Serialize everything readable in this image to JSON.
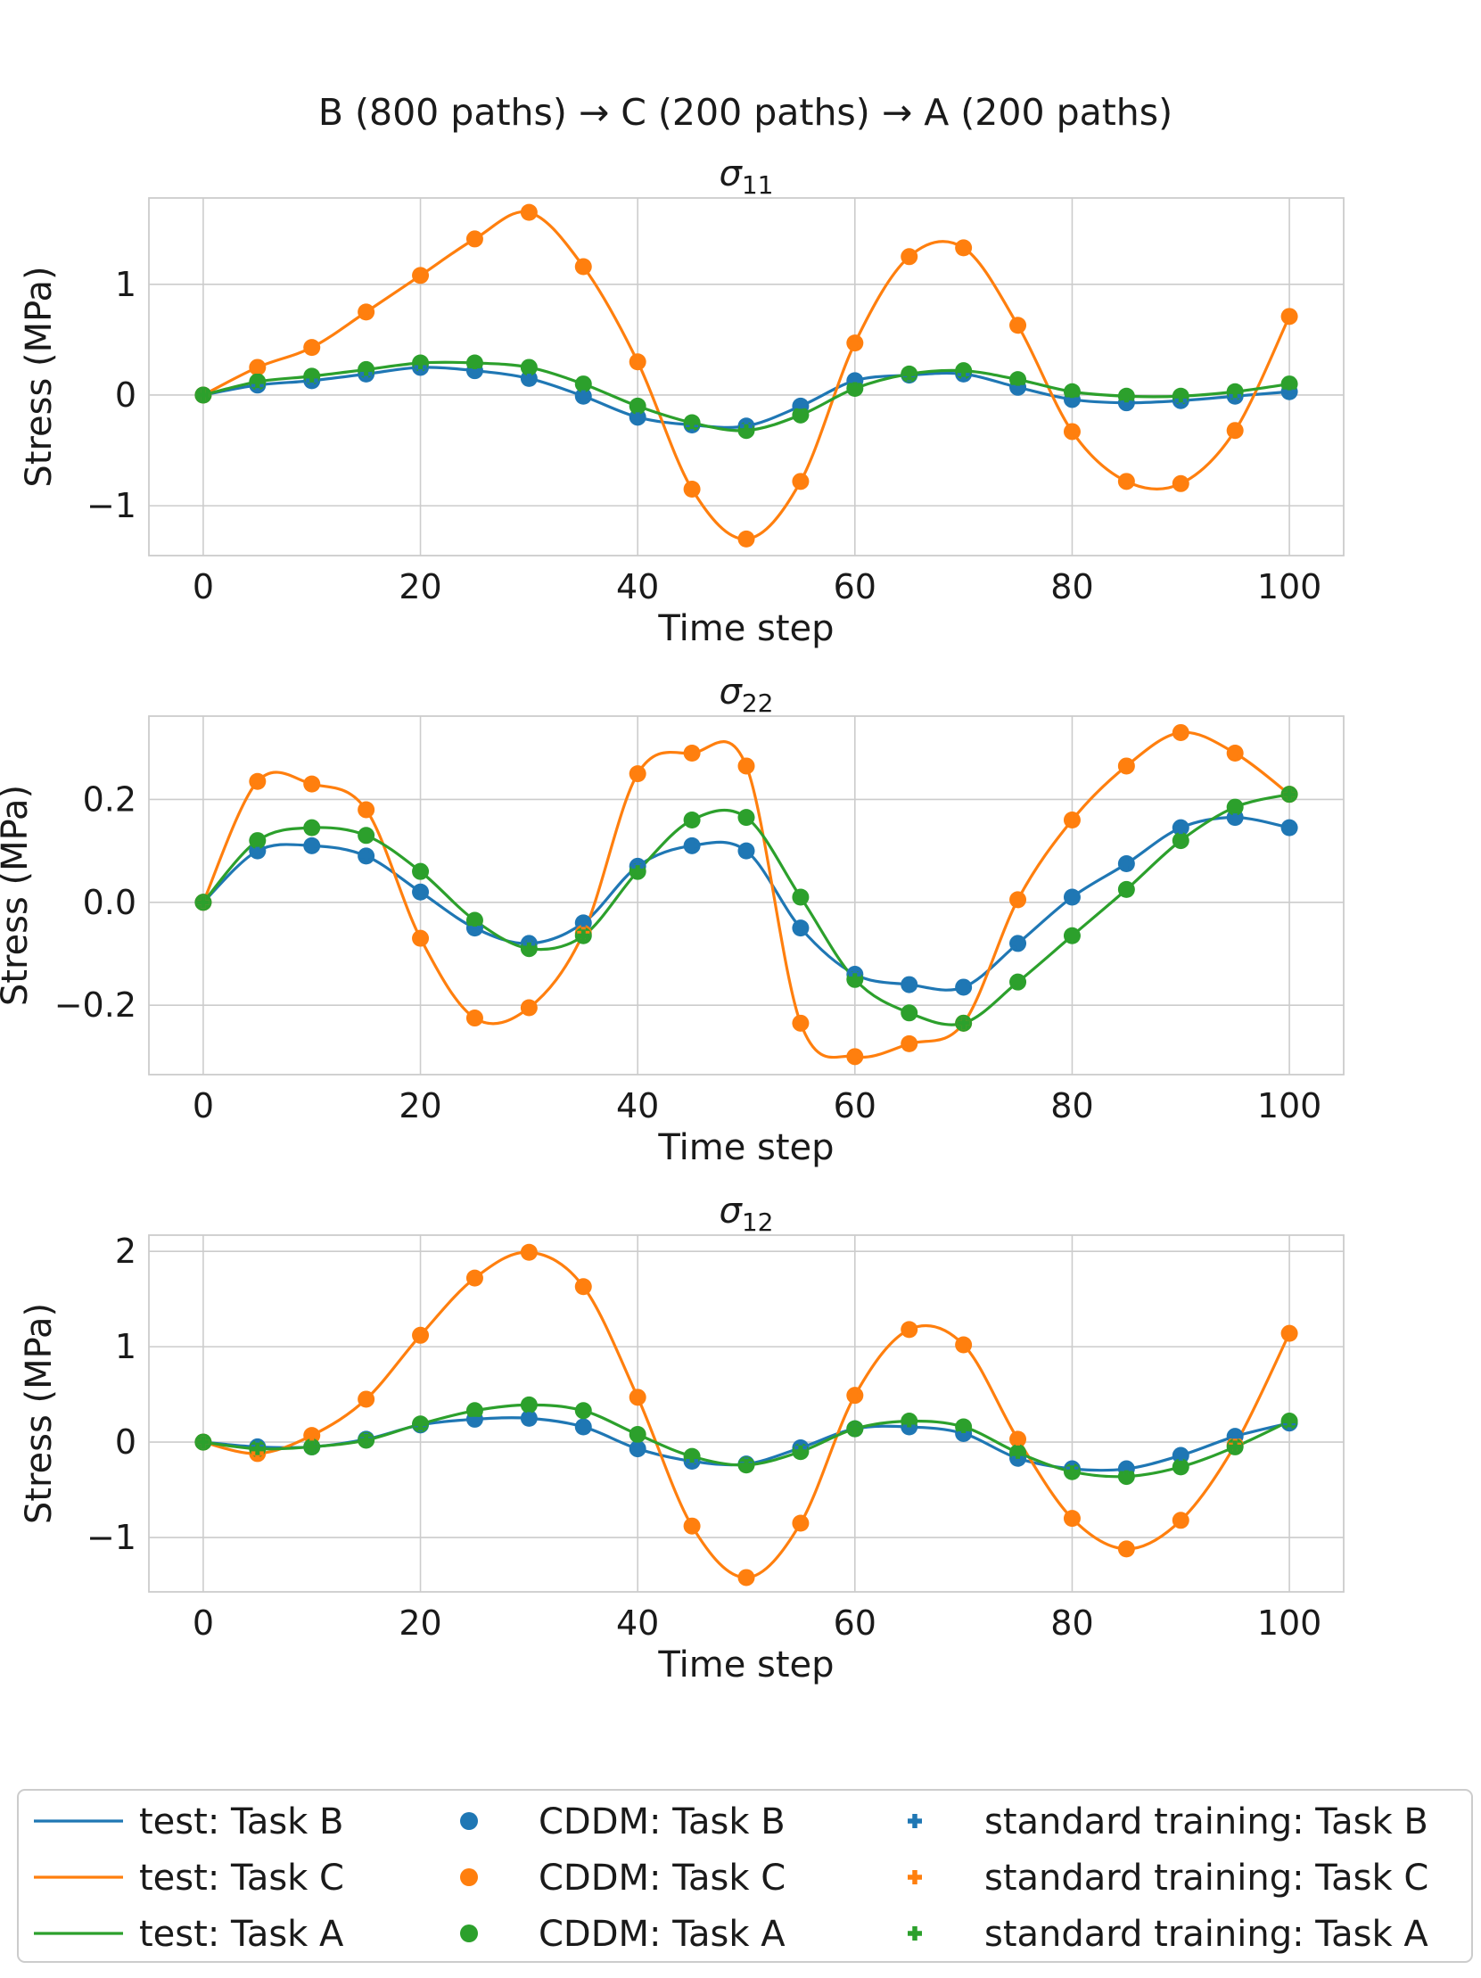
{
  "figure_title": "B (800 paths) → C (200 paths) → A (200 paths)",
  "colors": {
    "task_b": "#1f77b4",
    "task_c": "#ff7f0e",
    "task_a": "#2ca02c",
    "grid": "#cccccc",
    "frame": "#cccccc"
  },
  "legend": {
    "entries": [
      {
        "label": "test: Task B",
        "marker": "line",
        "series": "test_b"
      },
      {
        "label": "test: Task C",
        "marker": "line",
        "series": "test_c"
      },
      {
        "label": "test: Task A",
        "marker": "line",
        "series": "test_a"
      },
      {
        "label": "CDDM: Task B",
        "marker": "circle",
        "series": "cddm_b"
      },
      {
        "label": "CDDM: Task C",
        "marker": "circle",
        "series": "cddm_c"
      },
      {
        "label": "CDDM: Task A",
        "marker": "circle",
        "series": "cddm_a"
      },
      {
        "label": "standard training: Task B",
        "marker": "plus",
        "series": "std_b"
      },
      {
        "label": "standard training: Task C",
        "marker": "plus",
        "series": "std_c"
      },
      {
        "label": "standard training: Task A",
        "marker": "plus",
        "series": "std_a"
      }
    ]
  },
  "chart_data": [
    {
      "type": "line",
      "title_base": "σ",
      "title_sub": "11",
      "xlabel": "Time step",
      "ylabel": "Stress (MPa)",
      "xlim": [
        -5,
        105
      ],
      "ylim": [
        -1.45,
        1.78
      ],
      "xticks": [
        0,
        20,
        40,
        60,
        80,
        100
      ],
      "yticks": [
        -1,
        0,
        1
      ],
      "ytick_labels": [
        "−1",
        "0",
        "1"
      ],
      "grid": true,
      "x": [
        0,
        5,
        10,
        15,
        20,
        25,
        30,
        35,
        40,
        45,
        50,
        55,
        60,
        65,
        70,
        75,
        80,
        85,
        90,
        95,
        100
      ],
      "series": [
        {
          "name": "Task B",
          "key": "b",
          "values": [
            0,
            0.09,
            0.13,
            0.19,
            0.25,
            0.22,
            0.15,
            -0.01,
            -0.2,
            -0.27,
            -0.28,
            -0.1,
            0.13,
            0.18,
            0.19,
            0.07,
            -0.04,
            -0.07,
            -0.05,
            -0.01,
            0.03
          ]
        },
        {
          "name": "Task C",
          "key": "c",
          "values": [
            0,
            0.25,
            0.43,
            0.75,
            1.08,
            1.41,
            1.65,
            1.16,
            0.3,
            -0.85,
            -1.3,
            -0.78,
            0.47,
            1.25,
            1.33,
            0.63,
            -0.33,
            -0.78,
            -0.8,
            -0.32,
            0.71
          ]
        },
        {
          "name": "Task A",
          "key": "a",
          "values": [
            0,
            0.12,
            0.17,
            0.23,
            0.29,
            0.29,
            0.25,
            0.1,
            -0.1,
            -0.25,
            -0.32,
            -0.18,
            0.06,
            0.19,
            0.22,
            0.14,
            0.03,
            -0.01,
            -0.01,
            0.03,
            0.1
          ]
        }
      ]
    },
    {
      "type": "line",
      "title_base": "σ",
      "title_sub": "22",
      "xlabel": "Time step",
      "ylabel": "Stress (MPa)",
      "xlim": [
        -5,
        105
      ],
      "ylim": [
        -0.335,
        0.362
      ],
      "xticks": [
        0,
        20,
        40,
        60,
        80,
        100
      ],
      "yticks": [
        -0.2,
        0.0,
        0.2
      ],
      "ytick_labels": [
        "−0.2",
        "0.0",
        "0.2"
      ],
      "grid": true,
      "x": [
        0,
        5,
        10,
        15,
        20,
        25,
        30,
        35,
        40,
        45,
        50,
        55,
        60,
        65,
        70,
        75,
        80,
        85,
        90,
        95,
        100
      ],
      "series": [
        {
          "name": "Task B",
          "key": "b",
          "values": [
            0,
            0.1,
            0.11,
            0.09,
            0.02,
            -0.05,
            -0.08,
            -0.04,
            0.07,
            0.11,
            0.1,
            -0.05,
            -0.14,
            -0.16,
            -0.165,
            -0.08,
            0.01,
            0.075,
            0.145,
            0.165,
            0.145
          ]
        },
        {
          "name": "Task C",
          "key": "c",
          "values": [
            0,
            0.235,
            0.23,
            0.18,
            -0.07,
            -0.225,
            -0.205,
            -0.06,
            0.25,
            0.29,
            0.265,
            -0.235,
            -0.3,
            -0.275,
            -0.235,
            0.005,
            0.16,
            0.265,
            0.33,
            0.29,
            0.21
          ]
        },
        {
          "name": "Task A",
          "key": "a",
          "values": [
            0,
            0.12,
            0.145,
            0.13,
            0.06,
            -0.035,
            -0.09,
            -0.065,
            0.06,
            0.16,
            0.165,
            0.01,
            -0.15,
            -0.215,
            -0.235,
            -0.155,
            -0.065,
            0.025,
            0.12,
            0.185,
            0.21
          ]
        }
      ]
    },
    {
      "type": "line",
      "title_base": "σ",
      "title_sub": "12",
      "xlabel": "Time step",
      "ylabel": "Stress (MPa)",
      "xlim": [
        -5,
        105
      ],
      "ylim": [
        -1.57,
        2.17
      ],
      "xticks": [
        0,
        20,
        40,
        60,
        80,
        100
      ],
      "yticks": [
        -1,
        0,
        1,
        2
      ],
      "ytick_labels": [
        "−1",
        "0",
        "1",
        "2"
      ],
      "grid": true,
      "x": [
        0,
        5,
        10,
        15,
        20,
        25,
        30,
        35,
        40,
        45,
        50,
        55,
        60,
        65,
        70,
        75,
        80,
        85,
        90,
        95,
        100
      ],
      "series": [
        {
          "name": "Task B",
          "key": "b",
          "values": [
            0,
            -0.05,
            -0.05,
            0.03,
            0.18,
            0.24,
            0.25,
            0.16,
            -0.07,
            -0.2,
            -0.23,
            -0.06,
            0.14,
            0.16,
            0.09,
            -0.17,
            -0.28,
            -0.28,
            -0.14,
            0.06,
            0.2
          ]
        },
        {
          "name": "Task C",
          "key": "c",
          "values": [
            0,
            -0.12,
            0.07,
            0.45,
            1.12,
            1.72,
            1.99,
            1.63,
            0.47,
            -0.88,
            -1.42,
            -0.85,
            0.49,
            1.18,
            1.02,
            0.03,
            -0.8,
            -1.12,
            -0.82,
            -0.03,
            1.14
          ]
        },
        {
          "name": "Task A",
          "key": "a",
          "values": [
            0,
            -0.07,
            -0.05,
            0.02,
            0.19,
            0.33,
            0.39,
            0.33,
            0.08,
            -0.15,
            -0.24,
            -0.1,
            0.14,
            0.22,
            0.16,
            -0.11,
            -0.31,
            -0.36,
            -0.26,
            -0.05,
            0.22
          ]
        }
      ]
    }
  ]
}
